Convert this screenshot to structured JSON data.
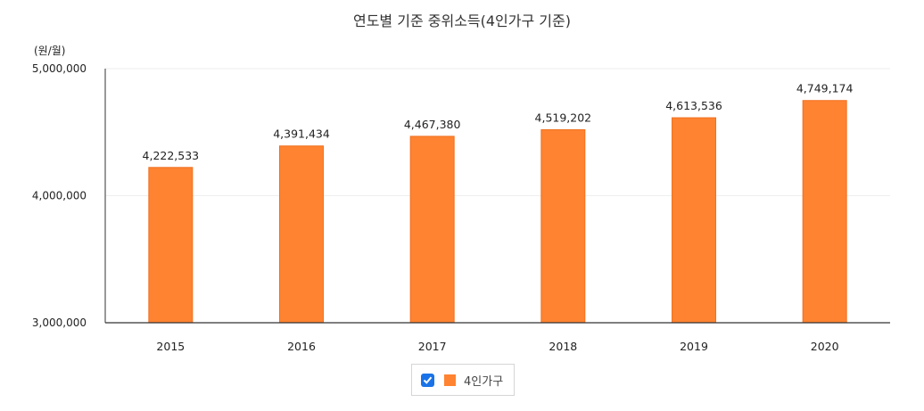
{
  "chart_data": {
    "type": "bar",
    "title": "연도별 기준 중위소득(4인가구 기준)",
    "ylabel": "(원/월)",
    "xlabel": "",
    "categories": [
      "2015",
      "2016",
      "2017",
      "2018",
      "2019",
      "2020"
    ],
    "series": [
      {
        "name": "4인가구",
        "values": [
          4222533,
          4391434,
          4467380,
          4519202,
          4613536,
          4749174
        ]
      }
    ],
    "ylim": [
      3000000,
      5000000
    ],
    "yticks": [
      3000000,
      4000000,
      5000000
    ],
    "ytick_labels": [
      "3,000,000",
      "4,000,000",
      "5,000,000"
    ],
    "data_labels": [
      "4,222,533",
      "4,391,434",
      "4,467,380",
      "4,519,202",
      "4,613,536",
      "4,749,174"
    ],
    "grid": true,
    "legend": {
      "placement": "bottom-center",
      "checked": true
    },
    "colors": {
      "bar": "#ff8330",
      "bar_border": "#f07020",
      "axis": "#333333",
      "grid": "#eeeeee",
      "checkbox": "#1a73e8"
    }
  }
}
